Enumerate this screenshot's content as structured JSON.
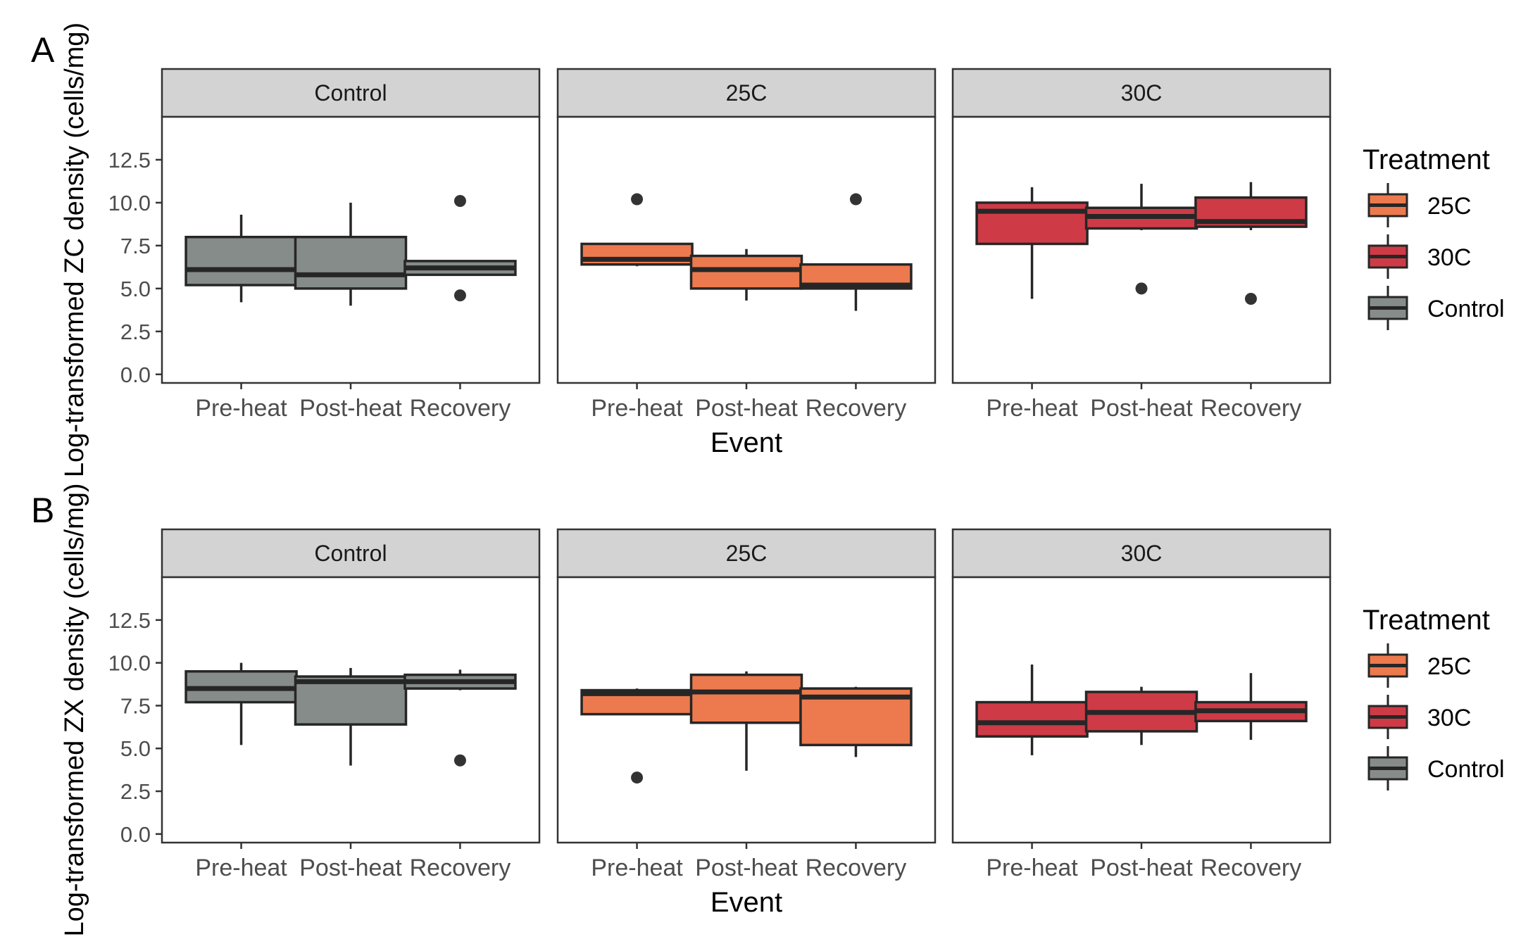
{
  "colors": {
    "Control": "#868C89",
    "25C": "#EC7A4E",
    "30C": "#CE3B46",
    "strip_bg": "#D3D3D3",
    "outline": "#262626",
    "tick_text": "#4D4D4D",
    "text": "#000000"
  },
  "chart_data": [
    {
      "type": "boxplot",
      "tag": "A",
      "ylabel": "Log-transformed ZC density (cells/mg)",
      "xlabel": "Event",
      "categories": [
        "Pre-heat",
        "Post-heat",
        "Recovery"
      ],
      "ylim": [
        -0.5,
        15
      ],
      "yticks": [
        "0.0",
        "2.5",
        "5.0",
        "7.5",
        "10.0",
        "12.5"
      ],
      "ytick_values": [
        0,
        2.5,
        5,
        7.5,
        10,
        12.5
      ],
      "legend": {
        "title": "Treatment",
        "position": "right",
        "entries": [
          "25C",
          "30C",
          "Control"
        ]
      },
      "facets": [
        {
          "name": "Control",
          "boxes": [
            {
              "event": "Pre-heat",
              "q1": 5.2,
              "median": 6.1,
              "q3": 8.0,
              "lower": 4.2,
              "upper": 9.3,
              "outliers": []
            },
            {
              "event": "Post-heat",
              "q1": 5.0,
              "median": 5.8,
              "q3": 8.0,
              "lower": 4.0,
              "upper": 10.0,
              "outliers": []
            },
            {
              "event": "Recovery",
              "q1": 5.8,
              "median": 6.2,
              "q3": 6.6,
              "lower": 5.8,
              "upper": 6.6,
              "outliers": [
                10.1,
                4.6
              ]
            }
          ]
        },
        {
          "name": "25C",
          "boxes": [
            {
              "event": "Pre-heat",
              "q1": 6.4,
              "median": 6.7,
              "q3": 7.6,
              "lower": 6.3,
              "upper": 7.6,
              "outliers": [
                10.2
              ]
            },
            {
              "event": "Post-heat",
              "q1": 5.0,
              "median": 6.1,
              "q3": 6.9,
              "lower": 4.3,
              "upper": 7.3,
              "outliers": []
            },
            {
              "event": "Recovery",
              "q1": 5.0,
              "median": 5.2,
              "q3": 6.4,
              "lower": 3.7,
              "upper": 6.4,
              "outliers": [
                10.2
              ]
            }
          ]
        },
        {
          "name": "30C",
          "boxes": [
            {
              "event": "Pre-heat",
              "q1": 7.6,
              "median": 9.5,
              "q3": 10.0,
              "lower": 4.4,
              "upper": 10.9,
              "outliers": []
            },
            {
              "event": "Post-heat",
              "q1": 8.5,
              "median": 9.2,
              "q3": 9.7,
              "lower": 8.4,
              "upper": 11.1,
              "outliers": [
                5.0
              ]
            },
            {
              "event": "Recovery",
              "q1": 8.6,
              "median": 8.9,
              "q3": 10.3,
              "lower": 8.4,
              "upper": 11.2,
              "outliers": [
                4.4
              ]
            }
          ]
        }
      ]
    },
    {
      "type": "boxplot",
      "tag": "B",
      "ylabel": "Log-transformed ZX density (cells/mg)",
      "xlabel": "Event",
      "categories": [
        "Pre-heat",
        "Post-heat",
        "Recovery"
      ],
      "ylim": [
        -0.5,
        15
      ],
      "yticks": [
        "0.0",
        "2.5",
        "5.0",
        "7.5",
        "10.0",
        "12.5"
      ],
      "ytick_values": [
        0,
        2.5,
        5,
        7.5,
        10,
        12.5
      ],
      "legend": {
        "title": "Treatment",
        "position": "right",
        "entries": [
          "25C",
          "30C",
          "Control"
        ]
      },
      "facets": [
        {
          "name": "Control",
          "boxes": [
            {
              "event": "Pre-heat",
              "q1": 7.7,
              "median": 8.5,
              "q3": 9.5,
              "lower": 5.2,
              "upper": 10.0,
              "outliers": []
            },
            {
              "event": "Post-heat",
              "q1": 6.4,
              "median": 8.9,
              "q3": 9.2,
              "lower": 4.0,
              "upper": 9.7,
              "outliers": []
            },
            {
              "event": "Recovery",
              "q1": 8.5,
              "median": 8.9,
              "q3": 9.3,
              "lower": 8.4,
              "upper": 9.6,
              "outliers": [
                4.3
              ]
            }
          ]
        },
        {
          "name": "25C",
          "boxes": [
            {
              "event": "Pre-heat",
              "q1": 7.0,
              "median": 8.2,
              "q3": 8.4,
              "lower": 7.0,
              "upper": 8.5,
              "outliers": [
                3.3
              ]
            },
            {
              "event": "Post-heat",
              "q1": 6.5,
              "median": 8.3,
              "q3": 9.3,
              "lower": 3.7,
              "upper": 9.5,
              "outliers": []
            },
            {
              "event": "Recovery",
              "q1": 5.2,
              "median": 8.0,
              "q3": 8.5,
              "lower": 4.5,
              "upper": 8.6,
              "outliers": []
            }
          ]
        },
        {
          "name": "30C",
          "boxes": [
            {
              "event": "Pre-heat",
              "q1": 5.7,
              "median": 6.5,
              "q3": 7.7,
              "lower": 4.6,
              "upper": 9.9,
              "outliers": []
            },
            {
              "event": "Post-heat",
              "q1": 6.0,
              "median": 7.1,
              "q3": 8.3,
              "lower": 5.2,
              "upper": 8.6,
              "outliers": []
            },
            {
              "event": "Recovery",
              "q1": 6.6,
              "median": 7.2,
              "q3": 7.7,
              "lower": 5.5,
              "upper": 9.4,
              "outliers": []
            }
          ]
        }
      ]
    }
  ]
}
